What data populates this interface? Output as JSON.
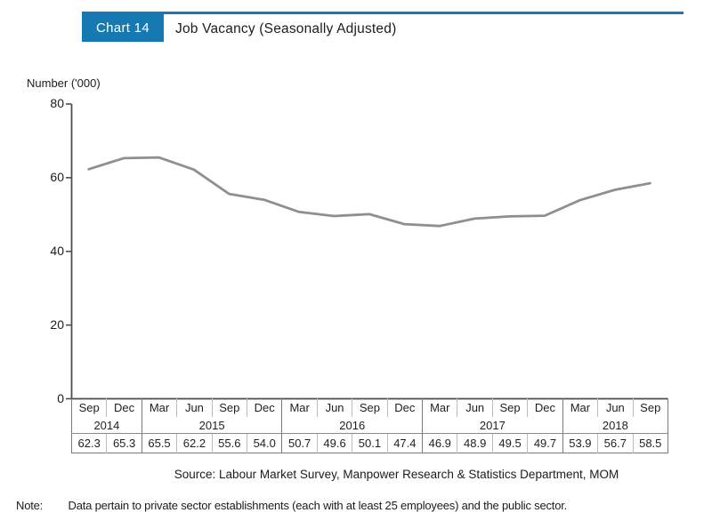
{
  "header": {
    "chart_label": "Chart 14",
    "title": "Job Vacancy (Seasonally Adjusted)"
  },
  "chart_data": {
    "type": "line",
    "title": "Job Vacancy (Seasonally Adjusted)",
    "ylabel": "Number ('000)",
    "xlabel": "",
    "ylim": [
      0,
      80
    ],
    "yticks": [
      0,
      20,
      40,
      60,
      80
    ],
    "grid": false,
    "legend": "none",
    "line_color": "#8f8f8f",
    "categories": [
      "Sep 2014",
      "Dec 2014",
      "Mar 2015",
      "Jun 2015",
      "Sep 2015",
      "Dec 2015",
      "Mar 2016",
      "Jun 2016",
      "Sep 2016",
      "Dec 2016",
      "Mar 2017",
      "Jun 2017",
      "Sep 2017",
      "Dec 2017",
      "Mar 2018",
      "Jun 2018",
      "Sep 2018"
    ],
    "values": [
      62.3,
      65.3,
      65.5,
      62.2,
      55.6,
      54.0,
      50.7,
      49.6,
      50.1,
      47.4,
      46.9,
      48.9,
      49.5,
      49.7,
      53.9,
      56.7,
      58.5
    ]
  },
  "table": {
    "months": [
      "Sep",
      "Dec",
      "Mar",
      "Jun",
      "Sep",
      "Dec",
      "Mar",
      "Jun",
      "Sep",
      "Dec",
      "Mar",
      "Jun",
      "Sep",
      "Dec",
      "Mar",
      "Jun",
      "Sep"
    ],
    "years": [
      {
        "label": "2014",
        "span": 2
      },
      {
        "label": "2015",
        "span": 4
      },
      {
        "label": "2016",
        "span": 4
      },
      {
        "label": "2017",
        "span": 4
      },
      {
        "label": "2018",
        "span": 3
      }
    ],
    "values": [
      "62.3",
      "65.3",
      "65.5",
      "62.2",
      "55.6",
      "54.0",
      "50.7",
      "49.6",
      "50.1",
      "47.4",
      "46.9",
      "48.9",
      "49.5",
      "49.7",
      "53.9",
      "56.7",
      "58.5"
    ]
  },
  "source": "Source: Labour Market Survey, Manpower Research & Statistics Department, MOM",
  "note": {
    "label": "Note:",
    "text": "Data pertain to private sector establishments (each with at least 25 employees) and the public sector."
  },
  "colors": {
    "accent_blue": "#1779b1",
    "line_gray": "#8f8f8f",
    "axis_dark": "#4d4d4d"
  }
}
